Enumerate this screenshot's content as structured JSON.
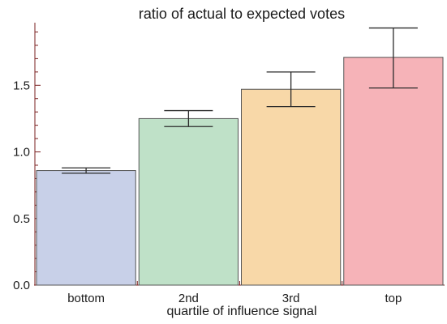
{
  "chart_data": {
    "type": "bar",
    "title": "ratio of actual to expected votes",
    "xlabel": "quartile of influence signal",
    "ylabel": "",
    "categories": [
      "bottom",
      "2nd",
      "3rd",
      "top"
    ],
    "values": [
      0.86,
      1.25,
      1.47,
      1.71
    ],
    "error_low": [
      0.84,
      1.19,
      1.34,
      1.48
    ],
    "error_high": [
      0.88,
      1.31,
      1.6,
      1.93
    ],
    "ylim": [
      0,
      1.97
    ],
    "yticks": [
      0.0,
      0.5,
      1.0,
      1.5
    ],
    "ytick_labels": [
      "0.0",
      "0.5",
      "1.0",
      "1.5"
    ],
    "grid": false,
    "colors": [
      "#c8d0e8",
      "#bfe1c8",
      "#f8d8a8",
      "#f6b3b8"
    ],
    "bar_edge_color": "#555555",
    "error_bar_color": "#2a2a2a",
    "axis_color": "#7a1f1f"
  }
}
